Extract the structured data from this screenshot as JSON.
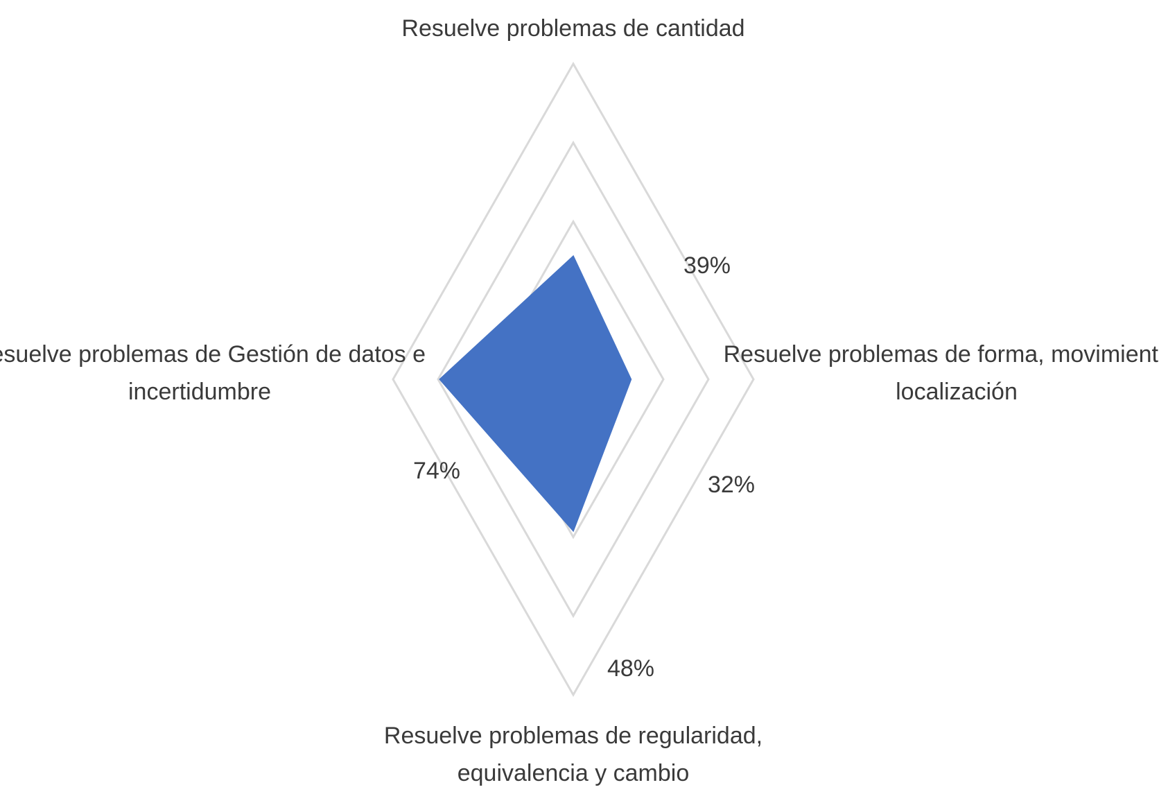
{
  "chart_data": {
    "type": "radar",
    "categories": [
      [
        "Resuelve problemas de cantidad"
      ],
      [
        "Resuelve problemas de forma, movimiento y",
        "localización"
      ],
      [
        "Resuelve problemas de regularidad,",
        "equivalencia y cambio"
      ],
      [
        "Resuelve problemas de Gestión de datos e",
        "incertidumbre"
      ]
    ],
    "values": [
      0.39,
      0.32,
      0.48,
      0.74
    ],
    "value_labels": [
      "39%",
      "32%",
      "48%",
      "74%"
    ],
    "rmax": 1.0,
    "gridlines": [
      0.25,
      0.5,
      0.75,
      1.0
    ],
    "colors": {
      "series_fill": "#4472C4",
      "gridline": "#d9d9d9",
      "text": "#3a3a3a"
    }
  }
}
